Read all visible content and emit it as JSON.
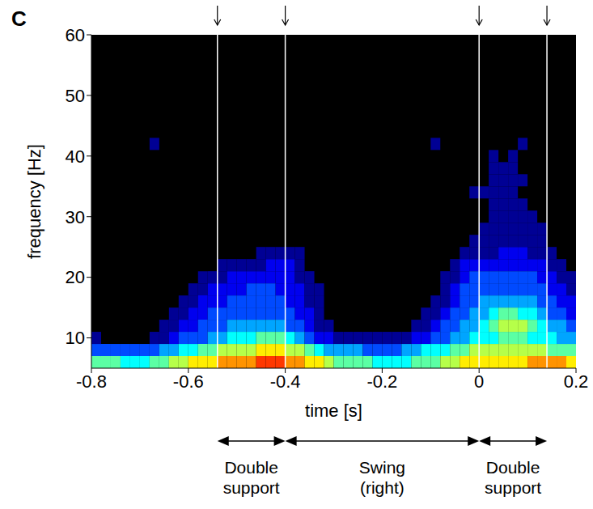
{
  "chart_data": {
    "type": "heatmap",
    "panel": "C",
    "x_label": "time [s]",
    "y_label": "frequency [Hz]",
    "xlim": [
      -0.8,
      0.2
    ],
    "xticks": [
      -0.8,
      -0.6,
      -0.4,
      -0.2,
      0,
      0.2
    ],
    "ylim": [
      5,
      60
    ],
    "yticks": [
      10,
      20,
      30,
      40,
      50,
      60
    ],
    "zlim": [
      1,
      10
    ],
    "x_edges": [
      -0.8,
      -0.78,
      -0.76,
      -0.74,
      -0.72,
      -0.7,
      -0.68,
      -0.66,
      -0.64,
      -0.62,
      -0.6,
      -0.58,
      -0.56,
      -0.54,
      -0.52,
      -0.5,
      -0.48,
      -0.46,
      -0.44,
      -0.42,
      -0.4,
      -0.38,
      -0.36,
      -0.34,
      -0.32,
      -0.3,
      -0.28,
      -0.26,
      -0.24,
      -0.22,
      -0.2,
      -0.18,
      -0.16,
      -0.14,
      -0.12,
      -0.1,
      -0.08,
      -0.06,
      -0.04,
      -0.02,
      0,
      0.02,
      0.04,
      0.06,
      0.08,
      0.1,
      0.12,
      0.14,
      0.16,
      0.18,
      0.2
    ],
    "y_edges": [
      5,
      7,
      9,
      11,
      13,
      15,
      17,
      19,
      21,
      23,
      25,
      27,
      29,
      31,
      33,
      35,
      37,
      39,
      41,
      43
    ],
    "cells": [
      [
        6,
        6,
        6,
        5,
        5,
        5,
        6,
        6,
        7,
        7,
        8,
        8,
        8,
        9,
        9,
        9,
        9,
        10,
        10,
        10,
        9,
        9,
        8,
        8,
        7,
        6,
        6,
        6,
        6,
        5,
        5,
        5,
        5,
        6,
        6,
        6,
        7,
        7,
        8,
        8,
        8,
        8,
        8,
        8,
        8,
        9,
        9,
        9,
        9,
        8
      ],
      [
        3,
        3,
        3,
        3,
        3,
        3,
        3,
        4,
        4,
        5,
        5,
        6,
        6,
        7,
        7,
        7,
        7,
        8,
        8,
        8,
        7,
        7,
        6,
        5,
        4,
        4,
        4,
        4,
        3,
        3,
        3,
        3,
        4,
        4,
        5,
        5,
        5,
        6,
        6,
        7,
        7,
        7,
        7,
        7,
        7,
        7,
        7,
        6,
        6,
        6
      ],
      [
        1,
        0,
        0,
        0,
        0,
        0,
        1,
        1,
        2,
        3,
        3,
        3,
        4,
        4,
        5,
        5,
        5,
        6,
        6,
        6,
        5,
        4,
        3,
        2,
        2,
        1,
        1,
        1,
        1,
        1,
        1,
        1,
        1,
        2,
        2,
        3,
        3,
        4,
        4,
        5,
        5,
        5,
        6,
        6,
        6,
        5,
        5,
        5,
        4,
        4
      ],
      [
        0,
        0,
        0,
        0,
        0,
        0,
        0,
        1,
        1,
        2,
        2,
        3,
        3,
        3,
        4,
        4,
        4,
        4,
        4,
        4,
        3,
        3,
        2,
        1,
        1,
        0,
        0,
        0,
        0,
        0,
        0,
        0,
        0,
        1,
        1,
        2,
        3,
        3,
        4,
        4,
        5,
        6,
        7,
        7,
        7,
        6,
        5,
        4,
        4,
        3
      ],
      [
        0,
        0,
        0,
        0,
        0,
        0,
        0,
        0,
        1,
        1,
        2,
        2,
        3,
        3,
        3,
        3,
        3,
        3,
        3,
        3,
        3,
        2,
        2,
        1,
        0,
        0,
        0,
        0,
        0,
        0,
        0,
        0,
        0,
        0,
        1,
        1,
        2,
        3,
        3,
        4,
        4,
        5,
        6,
        6,
        5,
        5,
        4,
        3,
        3,
        2
      ],
      [
        0,
        0,
        0,
        0,
        0,
        0,
        0,
        0,
        0,
        1,
        1,
        2,
        2,
        2,
        3,
        3,
        3,
        3,
        3,
        3,
        2,
        2,
        1,
        1,
        0,
        0,
        0,
        0,
        0,
        0,
        0,
        0,
        0,
        0,
        0,
        1,
        1,
        2,
        3,
        3,
        4,
        4,
        4,
        4,
        4,
        4,
        3,
        3,
        2,
        2
      ],
      [
        0,
        0,
        0,
        0,
        0,
        0,
        0,
        0,
        0,
        0,
        1,
        1,
        2,
        2,
        2,
        2,
        3,
        3,
        3,
        2,
        2,
        2,
        1,
        1,
        0,
        0,
        0,
        0,
        0,
        0,
        0,
        0,
        0,
        0,
        0,
        0,
        1,
        2,
        3,
        3,
        3,
        3,
        3,
        3,
        3,
        3,
        3,
        2,
        2,
        1
      ],
      [
        0,
        0,
        0,
        0,
        0,
        0,
        0,
        0,
        0,
        0,
        0,
        1,
        1,
        1,
        2,
        2,
        2,
        2,
        2,
        2,
        2,
        1,
        1,
        0,
        0,
        0,
        0,
        0,
        0,
        0,
        0,
        0,
        0,
        0,
        0,
        0,
        1,
        1,
        2,
        3,
        3,
        3,
        3,
        3,
        3,
        3,
        2,
        2,
        1,
        1
      ],
      [
        0,
        0,
        0,
        0,
        0,
        0,
        0,
        0,
        0,
        0,
        0,
        0,
        0,
        1,
        1,
        1,
        1,
        1,
        2,
        2,
        2,
        1,
        0,
        0,
        0,
        0,
        0,
        0,
        0,
        0,
        0,
        0,
        0,
        0,
        0,
        0,
        0,
        1,
        2,
        2,
        2,
        2,
        2,
        2,
        2,
        2,
        2,
        1,
        1,
        0
      ],
      [
        0,
        0,
        0,
        0,
        0,
        0,
        0,
        0,
        0,
        0,
        0,
        0,
        0,
        0,
        0,
        0,
        0,
        1,
        1,
        1,
        1,
        1,
        0,
        0,
        0,
        0,
        0,
        0,
        0,
        0,
        0,
        0,
        0,
        0,
        0,
        0,
        0,
        0,
        1,
        1,
        1,
        1,
        2,
        2,
        2,
        1,
        1,
        1,
        0,
        0
      ],
      [
        0,
        0,
        0,
        0,
        0,
        0,
        0,
        0,
        0,
        0,
        0,
        0,
        0,
        0,
        0,
        0,
        0,
        0,
        0,
        0,
        0,
        0,
        0,
        0,
        0,
        0,
        0,
        0,
        0,
        0,
        0,
        0,
        0,
        0,
        0,
        0,
        0,
        0,
        0,
        1,
        1,
        1,
        1,
        1,
        1,
        1,
        1,
        0,
        0,
        0
      ],
      [
        0,
        0,
        0,
        0,
        0,
        0,
        0,
        0,
        0,
        0,
        0,
        0,
        0,
        0,
        0,
        0,
        0,
        0,
        0,
        0,
        0,
        0,
        0,
        0,
        0,
        0,
        0,
        0,
        0,
        0,
        0,
        0,
        0,
        0,
        0,
        0,
        0,
        0,
        0,
        0,
        1,
        1,
        1,
        1,
        1,
        1,
        1,
        0,
        0,
        0
      ],
      [
        0,
        0,
        0,
        0,
        0,
        0,
        0,
        0,
        0,
        0,
        0,
        0,
        0,
        0,
        0,
        0,
        0,
        0,
        0,
        0,
        0,
        0,
        0,
        0,
        0,
        0,
        0,
        0,
        0,
        0,
        0,
        0,
        0,
        0,
        0,
        0,
        0,
        0,
        0,
        0,
        0,
        1,
        1,
        1,
        1,
        1,
        0,
        0,
        0,
        0
      ],
      [
        0,
        0,
        0,
        0,
        0,
        0,
        0,
        0,
        0,
        0,
        0,
        0,
        0,
        0,
        0,
        0,
        0,
        0,
        0,
        0,
        0,
        0,
        0,
        0,
        0,
        0,
        0,
        0,
        0,
        0,
        0,
        0,
        0,
        0,
        0,
        0,
        0,
        0,
        0,
        0,
        0,
        1,
        1,
        1,
        1,
        0,
        0,
        0,
        0,
        0
      ],
      [
        0,
        0,
        0,
        0,
        0,
        0,
        0,
        0,
        0,
        0,
        0,
        0,
        0,
        0,
        0,
        0,
        0,
        0,
        0,
        0,
        0,
        0,
        0,
        0,
        0,
        0,
        0,
        0,
        0,
        0,
        0,
        0,
        0,
        0,
        0,
        0,
        0,
        0,
        0,
        1,
        1,
        1,
        1,
        1,
        0,
        0,
        0,
        0,
        0,
        0
      ],
      [
        0,
        0,
        0,
        0,
        0,
        0,
        0,
        0,
        0,
        0,
        0,
        0,
        0,
        0,
        0,
        0,
        0,
        0,
        0,
        0,
        0,
        0,
        0,
        0,
        0,
        0,
        0,
        0,
        0,
        0,
        0,
        0,
        0,
        0,
        0,
        0,
        0,
        0,
        0,
        0,
        0,
        1,
        1,
        1,
        1,
        0,
        0,
        0,
        0,
        0
      ],
      [
        0,
        0,
        0,
        0,
        0,
        0,
        0,
        0,
        0,
        0,
        0,
        0,
        0,
        0,
        0,
        0,
        0,
        0,
        0,
        0,
        0,
        0,
        0,
        0,
        0,
        0,
        0,
        0,
        0,
        0,
        0,
        0,
        0,
        0,
        0,
        0,
        0,
        0,
        0,
        0,
        0,
        1,
        1,
        1,
        0,
        0,
        0,
        0,
        0,
        0
      ],
      [
        0,
        0,
        0,
        0,
        0,
        0,
        0,
        0,
        0,
        0,
        0,
        0,
        0,
        0,
        0,
        0,
        0,
        0,
        0,
        0,
        0,
        0,
        0,
        0,
        0,
        0,
        0,
        0,
        0,
        0,
        0,
        0,
        0,
        0,
        0,
        0,
        0,
        0,
        0,
        0,
        0,
        1,
        0,
        1,
        0,
        0,
        0,
        0,
        0,
        0
      ],
      [
        0,
        0,
        0,
        0,
        0,
        0,
        1,
        0,
        0,
        0,
        0,
        0,
        0,
        0,
        0,
        0,
        0,
        0,
        0,
        0,
        0,
        0,
        0,
        0,
        0,
        0,
        0,
        0,
        0,
        0,
        0,
        0,
        0,
        0,
        0,
        1,
        0,
        0,
        0,
        0,
        0,
        0,
        0,
        0,
        1,
        0,
        0,
        0,
        0,
        0
      ]
    ],
    "events": [
      -0.54,
      -0.4,
      0,
      0.14
    ],
    "phases": [
      {
        "label": "Double support",
        "start": -0.54,
        "end": -0.4
      },
      {
        "label": "Swing (right)",
        "start": -0.4,
        "end": 0
      },
      {
        "label": "Double support",
        "start": 0,
        "end": 0.14
      }
    ]
  }
}
